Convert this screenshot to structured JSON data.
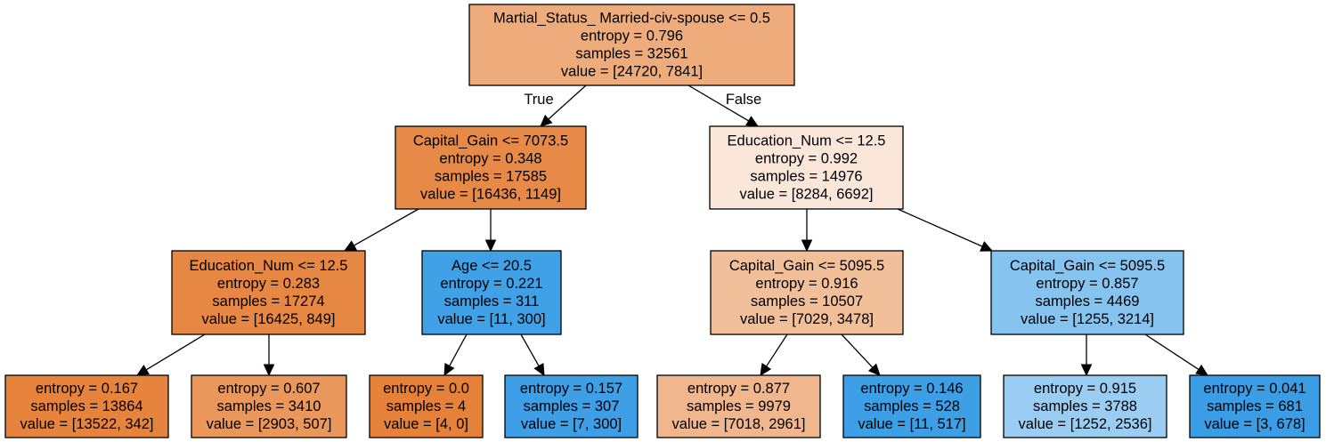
{
  "tree": {
    "edge_labels": {
      "true_label": "True",
      "false_label": "False"
    },
    "nodes": [
      {
        "id": "n0",
        "lines": [
          "Martial_Status_ Married-civ-spouse <= 0.5",
          "entropy = 0.796",
          "samples = 32561",
          "value = [24720, 7841]"
        ],
        "fill": "#eeac7c"
      },
      {
        "id": "n1",
        "lines": [
          "Capital_Gain <= 7073.5",
          "entropy = 0.348",
          "samples = 17585",
          "value = [16436, 1149]"
        ],
        "fill": "#e78a47"
      },
      {
        "id": "n2",
        "lines": [
          "Education_Num <= 12.5",
          "entropy = 0.992",
          "samples = 14976",
          "value = [8284, 6692]"
        ],
        "fill": "#fbe7d9"
      },
      {
        "id": "n3",
        "lines": [
          "Education_Num <= 12.5",
          "entropy = 0.283",
          "samples = 17274",
          "value = [16425, 849]"
        ],
        "fill": "#e68843"
      },
      {
        "id": "n4",
        "lines": [
          "Age <= 20.5",
          "entropy = 0.221",
          "samples = 311",
          "value = [11, 300]"
        ],
        "fill": "#40a1e6"
      },
      {
        "id": "n5",
        "lines": [
          "Capital_Gain <= 5095.5",
          "entropy = 0.916",
          "samples = 10507",
          "value = [7029, 3478]"
        ],
        "fill": "#f2bf9b"
      },
      {
        "id": "n6",
        "lines": [
          "Capital_Gain <= 5095.5",
          "entropy = 0.857",
          "samples = 4469",
          "value = [1255, 3214]"
        ],
        "fill": "#86c3ef"
      },
      {
        "id": "n7",
        "lines": [
          "entropy = 0.167",
          "samples = 13864",
          "value = [13522, 342]"
        ],
        "fill": "#e6843e"
      },
      {
        "id": "n8",
        "lines": [
          "entropy = 0.607",
          "samples = 3410",
          "value = [2903, 507]"
        ],
        "fill": "#ea975c"
      },
      {
        "id": "n9",
        "lines": [
          "entropy = 0.0",
          "samples = 4",
          "value = [4, 0]"
        ],
        "fill": "#e58139"
      },
      {
        "id": "n10",
        "lines": [
          "entropy = 0.157",
          "samples = 307",
          "value = [7, 300]"
        ],
        "fill": "#3e9fe6"
      },
      {
        "id": "n11",
        "lines": [
          "entropy = 0.877",
          "samples = 9979",
          "value = [7018, 2961]"
        ],
        "fill": "#f0b68d"
      },
      {
        "id": "n12",
        "lines": [
          "entropy = 0.146",
          "samples = 528",
          "value = [11, 517]"
        ],
        "fill": "#3d9fe6"
      },
      {
        "id": "n13",
        "lines": [
          "entropy = 0.915",
          "samples = 3788",
          "value = [1252, 2536]"
        ],
        "fill": "#9bcdf2"
      },
      {
        "id": "n14",
        "lines": [
          "entropy = 0.041",
          "samples = 681",
          "value = [3, 678]"
        ],
        "fill": "#3a9de5"
      }
    ],
    "edges": [
      {
        "from": "n0",
        "to": "n1"
      },
      {
        "from": "n0",
        "to": "n2"
      },
      {
        "from": "n1",
        "to": "n3"
      },
      {
        "from": "n1",
        "to": "n4"
      },
      {
        "from": "n2",
        "to": "n5"
      },
      {
        "from": "n2",
        "to": "n6"
      },
      {
        "from": "n3",
        "to": "n7"
      },
      {
        "from": "n3",
        "to": "n8"
      },
      {
        "from": "n4",
        "to": "n9"
      },
      {
        "from": "n4",
        "to": "n10"
      },
      {
        "from": "n5",
        "to": "n11"
      },
      {
        "from": "n5",
        "to": "n12"
      },
      {
        "from": "n6",
        "to": "n13"
      },
      {
        "from": "n6",
        "to": "n14"
      }
    ]
  }
}
